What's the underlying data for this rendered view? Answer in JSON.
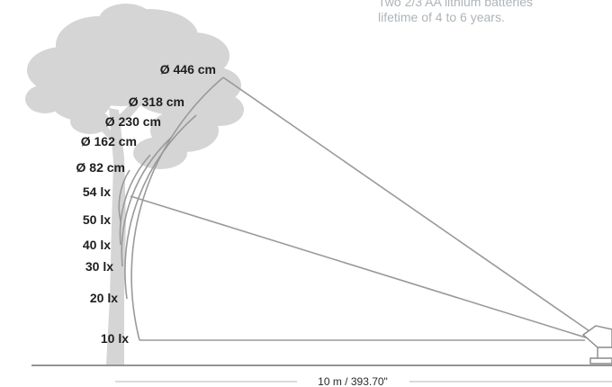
{
  "caption": {
    "line1": "Two 2/3 AA lithium batteries",
    "line2": "lifetime of 4 to 6 years."
  },
  "diameter_labels": [
    "Ø 446 cm",
    "Ø 318 cm",
    "Ø 230 cm",
    "Ø 162 cm",
    "Ø 82 cm"
  ],
  "lux_labels": [
    "54 lx",
    "50 lx",
    "40 lx",
    "30 lx",
    "20 lx",
    "10 lx"
  ],
  "distance_label": "10 m / 393.70\"",
  "colors": {
    "tree": "#d5d5d5",
    "beam_lines": "#9a9a9a",
    "ground": "#707070",
    "labels": "#1e1e1e",
    "caption": "#aeb4b8"
  },
  "icons": [
    "tree-silhouette-icon",
    "spotlight-fixture-icon"
  ]
}
